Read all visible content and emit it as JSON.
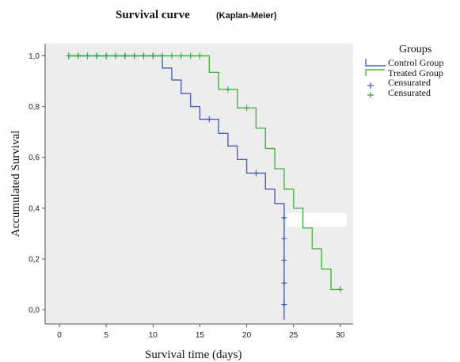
{
  "chart_data": {
    "type": "line",
    "subtype": "step",
    "title": "Survival curve",
    "title_suffix": "(Kaplan-Meier)",
    "xlabel": "Survival time  (days)",
    "ylabel": "Accumulated Survival",
    "xlim": [
      -2,
      31
    ],
    "ylim": [
      -0.06,
      1.02
    ],
    "xticks": [
      0,
      5,
      10,
      15,
      20,
      25,
      30
    ],
    "yticks": [
      0.0,
      0.2,
      0.4,
      0.6,
      0.8,
      1.0
    ],
    "ytick_labels": [
      "0,0",
      "0,2",
      "0,4",
      "0,6",
      "0,8",
      "1,0"
    ],
    "grid": false,
    "legend": {
      "title": "Groups",
      "position": "right",
      "entries": [
        "Control Group",
        "Treated Group",
        "Censurated",
        "Censurated"
      ]
    },
    "colors": {
      "background": "#ededed",
      "control": "#4a5fb5",
      "treated": "#4cb043",
      "censor_control": "#3358c4",
      "censor_treated": "#2fa843"
    },
    "series": [
      {
        "name": "Control Group",
        "steps": [
          [
            1,
            1.0
          ],
          [
            11,
            0.952
          ],
          [
            12,
            0.905
          ],
          [
            13,
            0.852
          ],
          [
            14,
            0.8
          ],
          [
            15,
            0.75
          ],
          [
            17,
            0.695
          ],
          [
            18,
            0.645
          ],
          [
            19,
            0.592
          ],
          [
            20,
            0.538
          ],
          [
            22,
            0.475
          ],
          [
            23,
            0.418
          ],
          [
            24,
            0.362
          ],
          [
            24,
            -0.04
          ]
        ],
        "censored": [
          [
            1,
            1.0
          ],
          [
            2,
            1.0
          ],
          [
            3,
            1.0
          ],
          [
            4,
            1.0
          ],
          [
            5,
            1.0
          ],
          [
            6,
            1.0
          ],
          [
            7,
            1.0
          ],
          [
            8,
            1.0
          ],
          [
            9,
            1.0
          ],
          [
            10,
            1.0
          ],
          [
            16,
            0.75
          ],
          [
            21,
            0.538
          ],
          [
            24,
            0.362
          ],
          [
            24,
            0.28
          ],
          [
            24,
            0.195
          ],
          [
            24,
            0.105
          ],
          [
            24,
            0.02
          ]
        ]
      },
      {
        "name": "Treated Group",
        "steps": [
          [
            1,
            1.0
          ],
          [
            16,
            0.935
          ],
          [
            17,
            0.868
          ],
          [
            19,
            0.795
          ],
          [
            21,
            0.715
          ],
          [
            22,
            0.635
          ],
          [
            23,
            0.555
          ],
          [
            24,
            0.475
          ],
          [
            25,
            0.4
          ],
          [
            26,
            0.322
          ],
          [
            27,
            0.24
          ],
          [
            28,
            0.16
          ],
          [
            29,
            0.08
          ],
          [
            30,
            0.08
          ]
        ],
        "censored": [
          [
            1,
            1.0
          ],
          [
            2,
            1.0
          ],
          [
            3,
            1.0
          ],
          [
            4,
            1.0
          ],
          [
            5,
            1.0
          ],
          [
            6,
            1.0
          ],
          [
            7,
            1.0
          ],
          [
            8,
            1.0
          ],
          [
            9,
            1.0
          ],
          [
            10,
            1.0
          ],
          [
            11,
            1.0
          ],
          [
            12,
            1.0
          ],
          [
            13,
            1.0
          ],
          [
            14,
            1.0
          ],
          [
            15,
            1.0
          ],
          [
            18,
            0.868
          ],
          [
            20,
            0.795
          ],
          [
            30,
            0.08
          ]
        ]
      }
    ]
  }
}
